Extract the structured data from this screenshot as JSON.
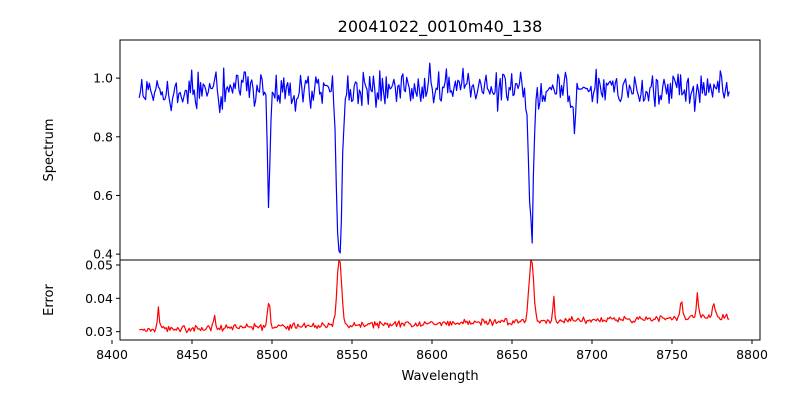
{
  "title": "20041022_0010m40_138",
  "colors": {
    "spectrum": "#0000ff",
    "error": "#ff0000",
    "axes": "#000000",
    "background": "#ffffff"
  },
  "chart_data": [
    {
      "type": "line",
      "panel": "top",
      "title": "20041022_0010m40_138",
      "xlabel": "",
      "ylabel": "Spectrum",
      "xlim": [
        8405,
        8805
      ],
      "ylim": [
        0.38,
        1.13
      ],
      "yticks": [
        0.4,
        0.6,
        0.8,
        1.0
      ],
      "ytick_labels": [
        "0.4",
        "0.6",
        "0.8",
        "1.0"
      ],
      "grid": false,
      "series": [
        {
          "color": "#0000ff",
          "baseline": 0.965,
          "noise": 0.045,
          "x_range": [
            8417,
            8786
          ],
          "features": [
            {
              "x": 8498.0,
              "depth": 0.38,
              "width": 0.8
            },
            {
              "x": 8542.1,
              "depth": 0.55,
              "width": 1.6
            },
            {
              "x": 8662.1,
              "depth": 0.5,
              "width": 1.5
            },
            {
              "x": 8688.6,
              "depth": 0.13,
              "width": 0.7
            },
            {
              "x": 8514.0,
              "depth": 0.05,
              "width": 1.0
            },
            {
              "x": 8426.0,
              "depth": 0.08,
              "width": 0.8
            },
            {
              "x": 8437.0,
              "depth": 0.1,
              "width": 0.6
            },
            {
              "x": 8468.0,
              "depth": 0.06,
              "width": 0.8
            },
            {
              "x": 8611.0,
              "depth": 0.05,
              "width": 0.8
            },
            {
              "x": 8648.0,
              "depth": 0.06,
              "width": 0.8
            },
            {
              "x": 8674.0,
              "depth": 0.05,
              "width": 0.8
            },
            {
              "x": 8764.0,
              "depth": 0.08,
              "width": 0.6
            }
          ]
        }
      ]
    },
    {
      "type": "line",
      "panel": "bottom",
      "xlabel": "Wavelength",
      "ylabel": "Error",
      "xlim": [
        8405,
        8805
      ],
      "ylim": [
        0.0275,
        0.0515
      ],
      "xticks": [
        8400,
        8450,
        8500,
        8550,
        8600,
        8650,
        8700,
        8750,
        8800
      ],
      "xtick_labels": [
        "8400",
        "8450",
        "8500",
        "8550",
        "8600",
        "8650",
        "8700",
        "8750",
        "8800"
      ],
      "yticks": [
        0.03,
        0.04,
        0.05
      ],
      "ytick_labels": [
        "0.03",
        "0.04",
        "0.05"
      ],
      "grid": false,
      "series": [
        {
          "color": "#ff0000",
          "baseline_start": 0.0305,
          "baseline_end": 0.0345,
          "noise": 0.0012,
          "x_range": [
            8417,
            8786
          ],
          "features": [
            {
              "x": 8542.1,
              "height": 0.02,
              "width": 1.4
            },
            {
              "x": 8662.1,
              "height": 0.019,
              "width": 1.4
            },
            {
              "x": 8498.0,
              "height": 0.008,
              "width": 0.8
            },
            {
              "x": 8429.0,
              "height": 0.007,
              "width": 0.6
            },
            {
              "x": 8464.0,
              "height": 0.004,
              "width": 0.6
            },
            {
              "x": 8676.0,
              "height": 0.008,
              "width": 0.5
            },
            {
              "x": 8756.0,
              "height": 0.006,
              "width": 0.6
            },
            {
              "x": 8766.0,
              "height": 0.007,
              "width": 0.6
            },
            {
              "x": 8776.0,
              "height": 0.003,
              "width": 0.8
            }
          ]
        }
      ]
    }
  ]
}
